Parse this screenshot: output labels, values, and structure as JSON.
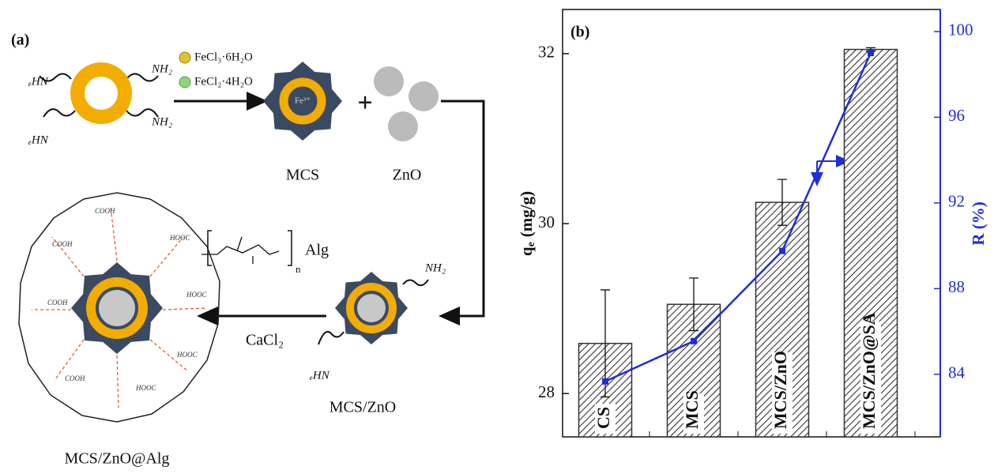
{
  "panel_a": {
    "label": "(a)",
    "reagents": [
      "FeCl₃·6H₂O",
      "FeCl₂·4H₂O"
    ],
    "amine_labels": [
      "NH₂",
      "NH₂",
      "ₑHN",
      "ₑHN",
      "NH₂",
      "ₑHN"
    ],
    "iron_label": "Fe³⁺",
    "plus": "+",
    "mcs": "MCS",
    "zno": "ZnO",
    "mcs_zno": "MCS/ZnO",
    "alg": "Alg",
    "alg_n": "n",
    "cacl2": "CaCl₂",
    "product": "MCS/ZnO@Alg",
    "carboxyl_labels": [
      "COOH",
      "HOOC",
      "HOOC",
      "COOH",
      "HOOC",
      "COOH",
      "HOOC",
      "COOH"
    ]
  },
  "chart_data": {
    "type": "bar",
    "panel_label": "(b)",
    "categories": [
      "CS",
      "MCS",
      "MCS/ZnO",
      "MCS/ZnO@SA"
    ],
    "series": [
      {
        "values": [
          28.59,
          29.05,
          30.25,
          32.05
        ],
        "errors": [
          0.63,
          0.31,
          0.27,
          0.02
        ],
        "color": "#333333"
      },
      {
        "type": "line",
        "axis": "y2",
        "values": [
          83.67,
          85.55,
          89.76,
          99.0
        ],
        "color": "#1f2fd6"
      }
    ],
    "ylabel": "q",
    "ylabel_sub": "e",
    "ylabel_unit": "(mg/g)",
    "y2label": "R (%)",
    "ylim": [
      27.49,
      32.52
    ],
    "yticks": [
      28,
      30,
      32
    ],
    "y2lim": [
      81.08,
      101.03
    ],
    "y2ticks": [
      84,
      88,
      92,
      96,
      100
    ]
  }
}
